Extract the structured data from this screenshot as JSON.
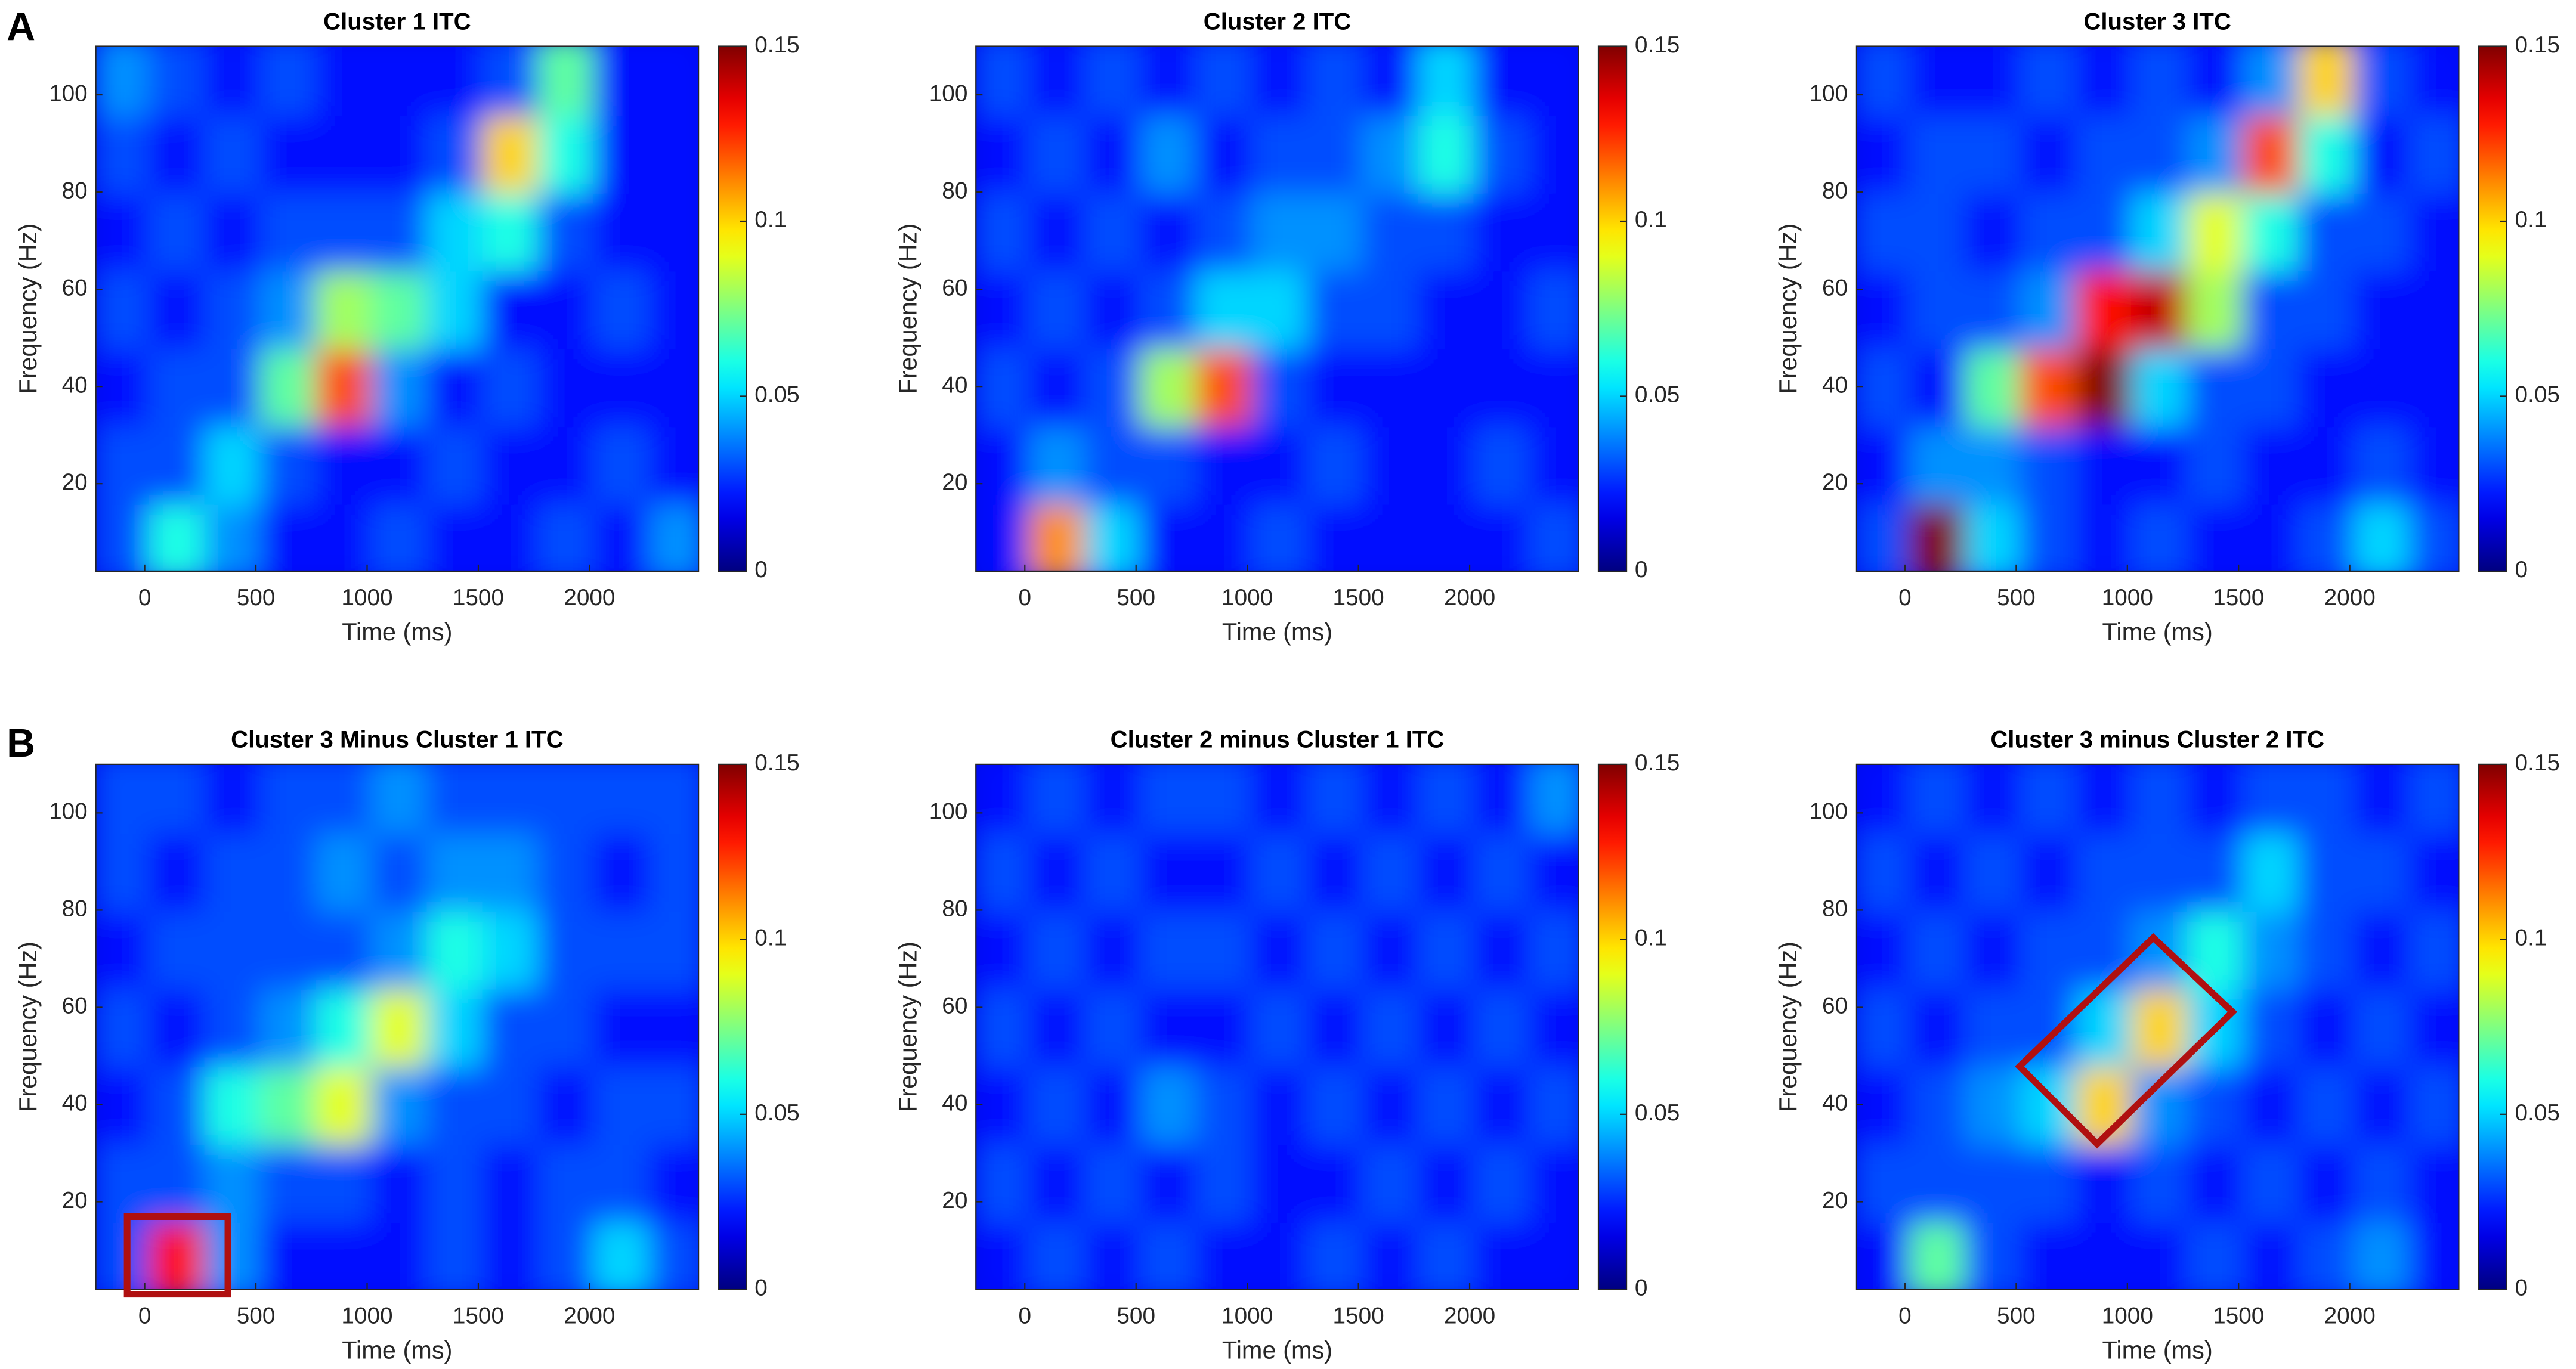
{
  "panel_labels": [
    "A",
    "B"
  ],
  "chart_data": [
    {
      "type": "heatmap",
      "title": "Cluster 1 ITC",
      "xlabel": "Time (ms)",
      "ylabel": "Frequency (Hz)",
      "colormap": "jet",
      "x": [
        -100,
        150,
        400,
        650,
        900,
        1150,
        1400,
        1650,
        1900,
        2150,
        2400
      ],
      "y": [
        8,
        24,
        40,
        56,
        72,
        88,
        104
      ],
      "z": [
        [
          0.03,
          0.06,
          0.04,
          0.02,
          0.02,
          0.03,
          0.02,
          0.02,
          0.03,
          0.02,
          0.04
        ],
        [
          0.03,
          0.03,
          0.05,
          0.03,
          0.02,
          0.02,
          0.03,
          0.02,
          0.02,
          0.03,
          0.02
        ],
        [
          0.02,
          0.03,
          0.03,
          0.07,
          0.12,
          0.04,
          0.02,
          0.03,
          0.02,
          0.02,
          0.02
        ],
        [
          0.03,
          0.02,
          0.03,
          0.04,
          0.08,
          0.07,
          0.05,
          0.02,
          0.02,
          0.03,
          0.02
        ],
        [
          0.02,
          0.03,
          0.02,
          0.03,
          0.03,
          0.03,
          0.05,
          0.06,
          0.03,
          0.02,
          0.02
        ],
        [
          0.03,
          0.02,
          0.03,
          0.02,
          0.02,
          0.02,
          0.03,
          0.1,
          0.06,
          0.02,
          0.02
        ],
        [
          0.04,
          0.03,
          0.02,
          0.03,
          0.02,
          0.02,
          0.02,
          0.03,
          0.07,
          0.02,
          0.02
        ]
      ],
      "xlim": [
        -220,
        2490
      ],
      "ylim": [
        2,
        110
      ],
      "xticks": [
        0,
        500,
        1000,
        1500,
        2000
      ],
      "yticks": [
        20,
        40,
        60,
        80,
        100
      ],
      "clim": [
        0,
        0.15
      ],
      "cticks": [
        0,
        0.05,
        0.1,
        0.15
      ]
    },
    {
      "type": "heatmap",
      "title": "Cluster 2 ITC",
      "xlabel": "Time (ms)",
      "ylabel": "Frequency (Hz)",
      "colormap": "jet",
      "x": [
        -100,
        150,
        400,
        650,
        900,
        1150,
        1400,
        1650,
        1900,
        2150,
        2400
      ],
      "y": [
        8,
        24,
        40,
        56,
        72,
        88,
        104
      ],
      "z": [
        [
          0.02,
          0.11,
          0.05,
          0.02,
          0.02,
          0.03,
          0.02,
          0.02,
          0.02,
          0.02,
          0.03
        ],
        [
          0.02,
          0.04,
          0.03,
          0.03,
          0.02,
          0.02,
          0.03,
          0.02,
          0.02,
          0.03,
          0.02
        ],
        [
          0.03,
          0.02,
          0.03,
          0.08,
          0.12,
          0.03,
          0.02,
          0.02,
          0.02,
          0.02,
          0.02
        ],
        [
          0.02,
          0.03,
          0.02,
          0.03,
          0.05,
          0.05,
          0.03,
          0.03,
          0.02,
          0.02,
          0.03
        ],
        [
          0.03,
          0.02,
          0.03,
          0.02,
          0.03,
          0.04,
          0.04,
          0.03,
          0.03,
          0.02,
          0.02
        ],
        [
          0.02,
          0.03,
          0.02,
          0.04,
          0.02,
          0.03,
          0.03,
          0.04,
          0.06,
          0.03,
          0.02
        ],
        [
          0.03,
          0.02,
          0.03,
          0.02,
          0.03,
          0.02,
          0.03,
          0.02,
          0.05,
          0.02,
          0.02
        ]
      ],
      "xlim": [
        -220,
        2490
      ],
      "ylim": [
        2,
        110
      ],
      "xticks": [
        0,
        500,
        1000,
        1500,
        2000
      ],
      "yticks": [
        20,
        40,
        60,
        80,
        100
      ],
      "clim": [
        0,
        0.15
      ],
      "cticks": [
        0,
        0.05,
        0.1,
        0.15
      ]
    },
    {
      "type": "heatmap",
      "title": "Cluster 3 ITC",
      "xlabel": "Time (ms)",
      "ylabel": "Frequency (Hz)",
      "colormap": "jet",
      "x": [
        -100,
        150,
        400,
        650,
        900,
        1150,
        1400,
        1650,
        1900,
        2150,
        2400
      ],
      "y": [
        8,
        24,
        40,
        56,
        72,
        88,
        104
      ],
      "z": [
        [
          0.03,
          0.15,
          0.05,
          0.03,
          0.02,
          0.03,
          0.02,
          0.02,
          0.03,
          0.05,
          0.03
        ],
        [
          0.02,
          0.04,
          0.04,
          0.03,
          0.02,
          0.02,
          0.03,
          0.02,
          0.02,
          0.03,
          0.02
        ],
        [
          0.03,
          0.02,
          0.07,
          0.12,
          0.15,
          0.05,
          0.03,
          0.03,
          0.02,
          0.02,
          0.02
        ],
        [
          0.02,
          0.03,
          0.03,
          0.04,
          0.13,
          0.14,
          0.08,
          0.03,
          0.03,
          0.02,
          0.02
        ],
        [
          0.03,
          0.03,
          0.02,
          0.03,
          0.03,
          0.05,
          0.09,
          0.06,
          0.03,
          0.03,
          0.02
        ],
        [
          0.02,
          0.03,
          0.03,
          0.02,
          0.03,
          0.03,
          0.04,
          0.12,
          0.06,
          0.02,
          0.03
        ],
        [
          0.03,
          0.02,
          0.02,
          0.03,
          0.02,
          0.03,
          0.02,
          0.04,
          0.1,
          0.03,
          0.02
        ]
      ],
      "xlim": [
        -220,
        2490
      ],
      "ylim": [
        2,
        110
      ],
      "xticks": [
        0,
        500,
        1000,
        1500,
        2000
      ],
      "yticks": [
        20,
        40,
        60,
        80,
        100
      ],
      "clim": [
        0,
        0.15
      ],
      "cticks": [
        0,
        0.05,
        0.1,
        0.15
      ]
    },
    {
      "type": "heatmap",
      "title": "Cluster 3 Minus Cluster 1 ITC",
      "xlabel": "Time (ms)",
      "ylabel": "Frequency (Hz)",
      "colormap": "jet",
      "x": [
        -100,
        150,
        400,
        650,
        900,
        1150,
        1400,
        1650,
        1900,
        2150,
        2400
      ],
      "y": [
        8,
        24,
        40,
        56,
        72,
        88,
        104
      ],
      "z": [
        [
          0.03,
          0.13,
          0.04,
          0.02,
          0.02,
          0.02,
          0.03,
          0.02,
          0.03,
          0.05,
          0.03
        ],
        [
          0.03,
          0.03,
          0.04,
          0.03,
          0.03,
          0.02,
          0.03,
          0.02,
          0.03,
          0.03,
          0.02
        ],
        [
          0.02,
          0.03,
          0.06,
          0.07,
          0.09,
          0.04,
          0.03,
          0.03,
          0.02,
          0.03,
          0.03
        ],
        [
          0.03,
          0.02,
          0.03,
          0.04,
          0.06,
          0.09,
          0.05,
          0.03,
          0.03,
          0.02,
          0.02
        ],
        [
          0.02,
          0.03,
          0.03,
          0.03,
          0.03,
          0.04,
          0.06,
          0.05,
          0.03,
          0.03,
          0.03
        ],
        [
          0.03,
          0.02,
          0.03,
          0.03,
          0.04,
          0.03,
          0.04,
          0.04,
          0.03,
          0.02,
          0.03
        ],
        [
          0.03,
          0.03,
          0.02,
          0.03,
          0.03,
          0.04,
          0.03,
          0.03,
          0.03,
          0.03,
          0.03
        ]
      ],
      "xlim": [
        -220,
        2490
      ],
      "ylim": [
        2,
        110
      ],
      "xticks": [
        0,
        500,
        1000,
        1500,
        2000
      ],
      "yticks": [
        20,
        40,
        60,
        80,
        100
      ],
      "clim": [
        0,
        0.15
      ],
      "cticks": [
        0,
        0.05,
        0.1,
        0.15
      ]
    },
    {
      "type": "heatmap",
      "title": "Cluster 2 minus Cluster 1 ITC",
      "xlabel": "Time (ms)",
      "ylabel": "Frequency (Hz)",
      "colormap": "jet",
      "x": [
        -100,
        150,
        400,
        650,
        900,
        1150,
        1400,
        1650,
        1900,
        2150,
        2400
      ],
      "y": [
        8,
        24,
        40,
        56,
        72,
        88,
        104
      ],
      "z": [
        [
          0.02,
          0.03,
          0.02,
          0.03,
          0.02,
          0.02,
          0.03,
          0.02,
          0.03,
          0.02,
          0.02
        ],
        [
          0.03,
          0.02,
          0.03,
          0.02,
          0.03,
          0.02,
          0.02,
          0.03,
          0.02,
          0.03,
          0.02
        ],
        [
          0.02,
          0.03,
          0.02,
          0.04,
          0.03,
          0.02,
          0.03,
          0.02,
          0.03,
          0.02,
          0.03
        ],
        [
          0.03,
          0.02,
          0.03,
          0.02,
          0.02,
          0.03,
          0.02,
          0.03,
          0.02,
          0.03,
          0.02
        ],
        [
          0.02,
          0.03,
          0.02,
          0.03,
          0.03,
          0.02,
          0.03,
          0.02,
          0.03,
          0.02,
          0.03
        ],
        [
          0.03,
          0.02,
          0.03,
          0.02,
          0.02,
          0.03,
          0.02,
          0.03,
          0.02,
          0.03,
          0.02
        ],
        [
          0.02,
          0.03,
          0.02,
          0.03,
          0.03,
          0.02,
          0.03,
          0.02,
          0.03,
          0.02,
          0.04
        ]
      ],
      "xlim": [
        -220,
        2490
      ],
      "ylim": [
        2,
        110
      ],
      "xticks": [
        0,
        500,
        1000,
        1500,
        2000
      ],
      "yticks": [
        20,
        40,
        60,
        80,
        100
      ],
      "clim": [
        0,
        0.15
      ],
      "cticks": [
        0,
        0.05,
        0.1,
        0.15
      ]
    },
    {
      "type": "heatmap",
      "title": "Cluster 3 minus Cluster 2 ITC",
      "xlabel": "Time (ms)",
      "ylabel": "Frequency (Hz)",
      "colormap": "jet",
      "x": [
        -100,
        150,
        400,
        650,
        900,
        1150,
        1400,
        1650,
        1900,
        2150,
        2400
      ],
      "y": [
        8,
        24,
        40,
        56,
        72,
        88,
        104
      ],
      "z": [
        [
          0.02,
          0.07,
          0.03,
          0.02,
          0.02,
          0.02,
          0.03,
          0.02,
          0.03,
          0.04,
          0.02
        ],
        [
          0.03,
          0.03,
          0.03,
          0.03,
          0.02,
          0.03,
          0.02,
          0.03,
          0.02,
          0.03,
          0.02
        ],
        [
          0.02,
          0.03,
          0.04,
          0.05,
          0.1,
          0.04,
          0.03,
          0.02,
          0.03,
          0.02,
          0.03
        ],
        [
          0.03,
          0.02,
          0.03,
          0.03,
          0.05,
          0.1,
          0.05,
          0.03,
          0.02,
          0.03,
          0.02
        ],
        [
          0.02,
          0.03,
          0.02,
          0.03,
          0.03,
          0.04,
          0.06,
          0.04,
          0.03,
          0.02,
          0.03
        ],
        [
          0.03,
          0.02,
          0.03,
          0.02,
          0.03,
          0.03,
          0.03,
          0.05,
          0.03,
          0.03,
          0.02
        ],
        [
          0.02,
          0.03,
          0.02,
          0.03,
          0.02,
          0.03,
          0.02,
          0.03,
          0.03,
          0.02,
          0.03
        ]
      ],
      "xlim": [
        -220,
        2490
      ],
      "ylim": [
        2,
        110
      ],
      "xticks": [
        0,
        500,
        1000,
        1500,
        2000
      ],
      "yticks": [
        20,
        40,
        60,
        80,
        100
      ],
      "clim": [
        0,
        0.15
      ],
      "cticks": [
        0,
        0.05,
        0.1,
        0.15
      ]
    }
  ]
}
